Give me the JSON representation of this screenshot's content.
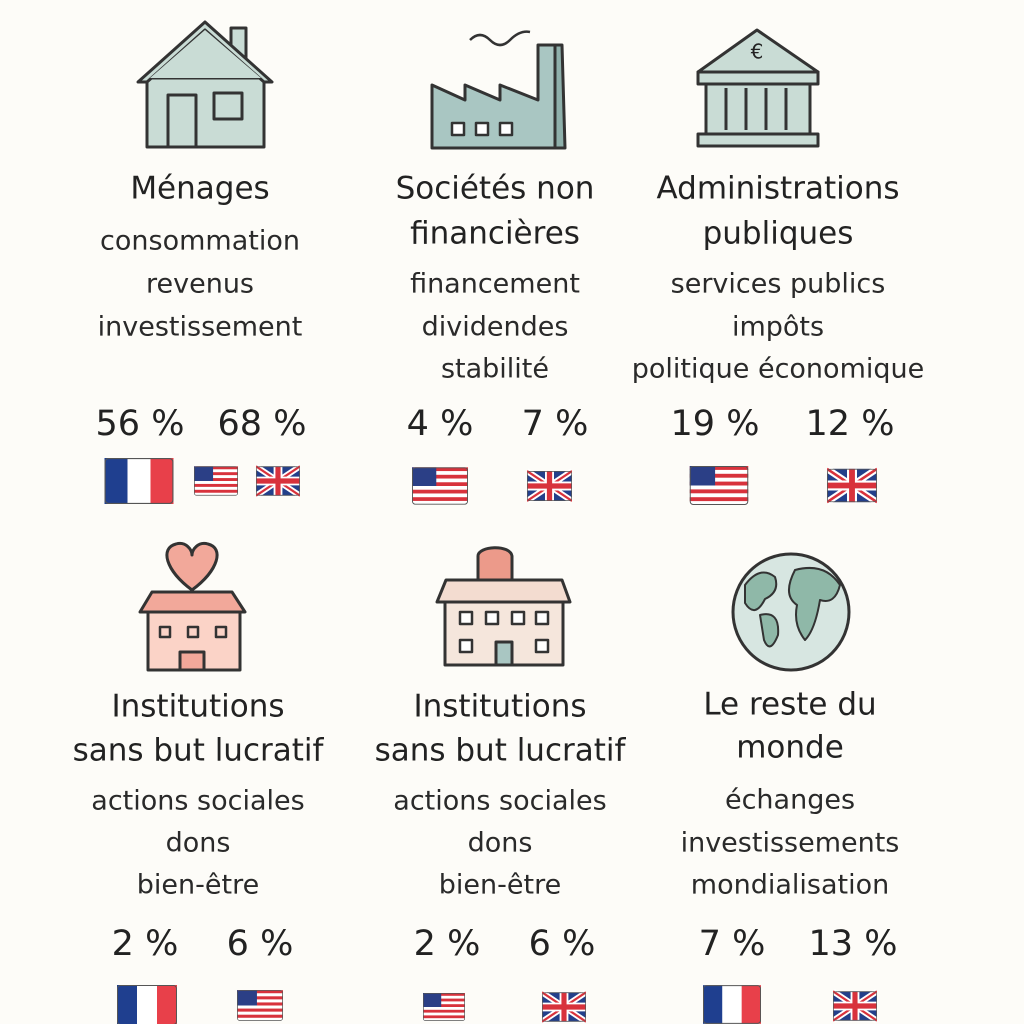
{
  "icon_text": "€",
  "cards": [
    {
      "title": [
        "Ménages"
      ],
      "keywords": [
        "consommation",
        "revenus",
        "investissement"
      ],
      "stats": [
        "56 %",
        "68 %"
      ]
    },
    {
      "title": [
        "Sociétés non",
        "financières"
      ],
      "keywords": [
        "financement",
        "dividendes",
        "stabilité"
      ],
      "stats": [
        "4 %",
        "7 %"
      ]
    },
    {
      "title": [
        "Administrations",
        "publiques"
      ],
      "keywords": [
        "services publics",
        "impôts",
        "politique économique"
      ],
      "stats": [
        "19 %",
        "12 %"
      ]
    },
    {
      "title": [
        "Institutions",
        "sans but lucratif"
      ],
      "keywords": [
        "actions sociales",
        "dons",
        "bien-être"
      ],
      "stats": [
        "2 %",
        "6 %"
      ]
    },
    {
      "title": [
        "Institutions",
        "sans but lucratif"
      ],
      "keywords": [
        "actions sociales",
        "dons",
        "bien-être"
      ],
      "stats": [
        "2 %",
        "6 %"
      ]
    },
    {
      "title": [
        "Le reste du",
        "monde"
      ],
      "keywords": [
        "échanges",
        "investissements",
        "mondialisation"
      ],
      "stats": [
        "7 %",
        "13 %"
      ]
    }
  ]
}
